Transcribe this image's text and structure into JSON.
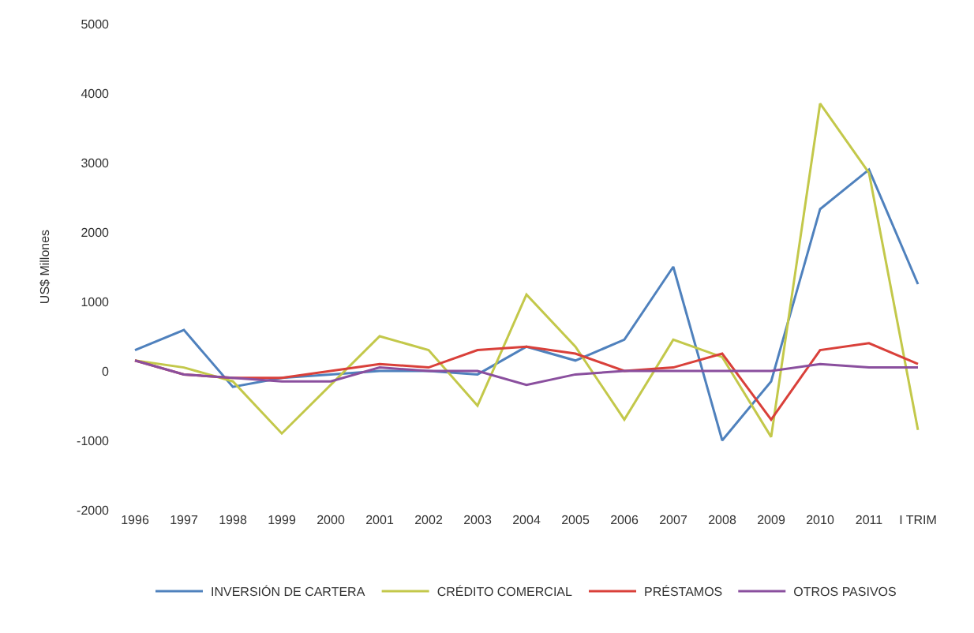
{
  "chart_data": {
    "type": "line",
    "ylabel": "US$ Millones",
    "categories": [
      "1996",
      "1997",
      "1998",
      "1999",
      "2000",
      "2001",
      "2002",
      "2003",
      "2004",
      "2005",
      "2006",
      "2007",
      "2008",
      "2009",
      "2010",
      "2011",
      "I TRIM"
    ],
    "series": [
      {
        "name": "INVERSIÓN DE CARTERA",
        "color": "#4f81bd",
        "values": [
          300,
          590,
          -230,
          -100,
          -50,
          0,
          0,
          -50,
          350,
          150,
          450,
          1500,
          -1000,
          -150,
          2330,
          2900,
          1250
        ]
      },
      {
        "name": "CRÉDITO COMERCIAL",
        "color": "#c3c84a",
        "values": [
          150,
          50,
          -150,
          -900,
          -200,
          500,
          300,
          -500,
          1100,
          350,
          -700,
          450,
          200,
          -950,
          3850,
          2850,
          -850
        ]
      },
      {
        "name": "PRÉSTAMOS",
        "color": "#d9403a",
        "values": [
          150,
          -50,
          -100,
          -100,
          0,
          100,
          50,
          300,
          350,
          250,
          0,
          50,
          250,
          -700,
          300,
          400,
          100
        ]
      },
      {
        "name": "OTROS PASIVOS",
        "color": "#8a4f9e",
        "values": [
          150,
          -50,
          -100,
          -150,
          -150,
          50,
          0,
          0,
          -200,
          -50,
          0,
          0,
          0,
          0,
          100,
          50,
          50
        ]
      }
    ],
    "ylim": [
      -2000,
      5000
    ],
    "yticks": [
      -2000,
      -1000,
      0,
      1000,
      2000,
      3000,
      4000,
      5000
    ],
    "legend": "bottom",
    "line_style": "solid",
    "marker": "none"
  }
}
